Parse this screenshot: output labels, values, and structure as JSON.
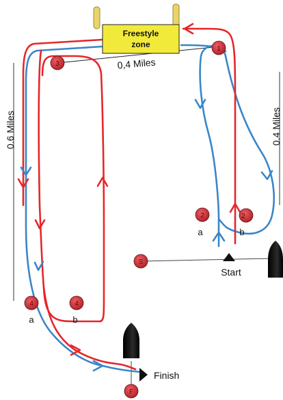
{
  "freestyle_zone": {
    "line1": "Freestyle",
    "line2": "zone"
  },
  "distances": {
    "top": "0,4 Miles",
    "left": "0.6 Miles",
    "right": "0.4 Miles"
  },
  "buoys": [
    {
      "id": "buoy-1",
      "number": "1",
      "sub": ""
    },
    {
      "id": "buoy-2a",
      "number": "2",
      "sub": "a"
    },
    {
      "id": "buoy-2b",
      "number": "2",
      "sub": "b"
    },
    {
      "id": "buoy-3",
      "number": "3",
      "sub": ""
    },
    {
      "id": "buoy-4a",
      "number": "4",
      "sub": "a"
    },
    {
      "id": "buoy-4b",
      "number": "4",
      "sub": "b"
    },
    {
      "id": "buoy-s",
      "number": "S",
      "sub": ""
    },
    {
      "id": "buoy-f",
      "number": "F",
      "sub": ""
    }
  ],
  "labels": {
    "start": "Start",
    "finish": "Finish"
  },
  "colors": {
    "red": "#e5262b",
    "blue": "#3a86c8",
    "buoy": "#d0323a",
    "zone": "#f2ea3a"
  }
}
